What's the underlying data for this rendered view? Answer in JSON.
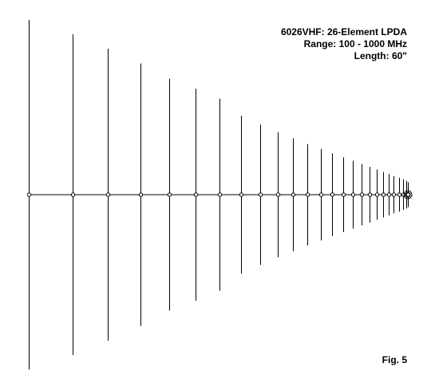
{
  "title_lines": [
    "6026VHF: 26-Element LPDA",
    "Range:  100 - 1000 MHz",
    "Length: 60\""
  ],
  "figure_label": "Fig. 5",
  "colors": {
    "line": "#000000",
    "background": "#ffffff",
    "node_fill": "#ffffff"
  },
  "antenna": {
    "element_count": 26,
    "element_half_lengths_relative": [
      1.0,
      0.918,
      0.835,
      0.751,
      0.663,
      0.606,
      0.549,
      0.452,
      0.401,
      0.358,
      0.323,
      0.29,
      0.262,
      0.237,
      0.214,
      0.194,
      0.175,
      0.159,
      0.144,
      0.13,
      0.118,
      0.107,
      0.097,
      0.087,
      0.079,
      0.071
    ],
    "element_positions_relative": [
      0.0,
      0.116,
      0.21,
      0.296,
      0.373,
      0.443,
      0.506,
      0.563,
      0.614,
      0.66,
      0.702,
      0.74,
      0.775,
      0.806,
      0.834,
      0.86,
      0.883,
      0.904,
      0.923,
      0.94,
      0.955,
      0.969,
      0.982,
      0.993,
      1.003,
      1.0
    ],
    "feed_point_icon": "double-circle-feedpoint-icon"
  }
}
